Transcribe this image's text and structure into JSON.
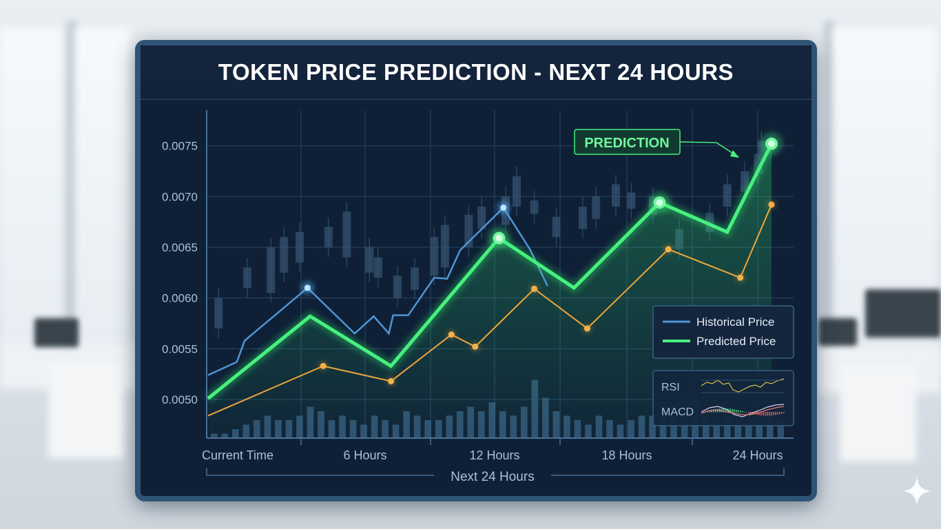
{
  "title": "TOKEN PRICE PREDICTION - NEXT 24 HOURS",
  "annotation": "PREDICTION",
  "legend": {
    "historical": "Historical Price",
    "predicted": "Predicted Price"
  },
  "indicators": {
    "rsi": "RSI",
    "macd": "MACD"
  },
  "xaxis_title": "Next 24 Hours",
  "colors": {
    "historical": "#4f95d6",
    "predicted": "#47f07e",
    "orange": "#f0a63a",
    "panel_bg": "#0f2036",
    "grid": "#2a4563",
    "axis_text": "#a8c0d8"
  },
  "chart_data": {
    "type": "line",
    "title": "TOKEN PRICE PREDICTION - NEXT 24 HOURS",
    "xlabel": "Next 24 Hours",
    "ylabel": "",
    "xlim": [
      0,
      24
    ],
    "ylim": [
      0.00462,
      0.00785
    ],
    "x_ticks": [
      {
        "x": 0,
        "label": "Current Time"
      },
      {
        "x": 6,
        "label": "6 Hours"
      },
      {
        "x": 12,
        "label": "12 Hours"
      },
      {
        "x": 18,
        "label": "18 Hours"
      },
      {
        "x": 24,
        "label": "24 Hours"
      }
    ],
    "y_ticks": [
      {
        "y": 0.005,
        "label": "0.0050"
      },
      {
        "y": 0.0055,
        "label": "0.0055"
      },
      {
        "y": 0.006,
        "label": "0.0060"
      },
      {
        "y": 0.0065,
        "label": "0.0065"
      },
      {
        "y": 0.007,
        "label": "0.0070"
      },
      {
        "y": 0.0075,
        "label": "0.0075"
      }
    ],
    "legend_position": "right",
    "grid": true,
    "series": [
      {
        "name": "Historical Price",
        "points": [
          [
            0,
            0.00524
          ],
          [
            1.1,
            0.00537
          ],
          [
            1.4,
            0.00558
          ],
          [
            3.8,
            0.0061
          ],
          [
            5.6,
            0.00565
          ],
          [
            6.4,
            0.00582
          ],
          [
            7.1,
            0.00565
          ],
          [
            7.3,
            0.00583
          ],
          [
            8.0,
            0.00583
          ],
          [
            9.2,
            0.0062
          ],
          [
            9.8,
            0.00619
          ],
          [
            10.4,
            0.00647
          ],
          [
            12.4,
            0.00689
          ],
          [
            13.6,
            0.00648
          ],
          [
            14.4,
            0.00612
          ]
        ],
        "markers": [
          [
            3.8,
            0.0061
          ],
          [
            12.4,
            0.00689
          ]
        ]
      },
      {
        "name": "Predicted Price",
        "points": [
          [
            0,
            0.00501
          ],
          [
            3.9,
            0.00582
          ],
          [
            7.2,
            0.00533
          ],
          [
            12.2,
            0.00659
          ],
          [
            15.6,
            0.0061
          ],
          [
            19.5,
            0.00694
          ],
          [
            22.6,
            0.00665
          ],
          [
            27,
            0.00752
          ]
        ],
        "markers": [
          [
            12.2,
            0.00659
          ],
          [
            19.5,
            0.00694
          ],
          [
            27,
            0.00752
          ]
        ]
      },
      {
        "points": [
          [
            0,
            0.00484
          ],
          [
            4.4,
            0.00533
          ],
          [
            7.2,
            0.00518
          ],
          [
            10.0,
            0.00564
          ],
          [
            11.1,
            0.00552
          ],
          [
            13.8,
            0.00609
          ],
          [
            16.2,
            0.0057
          ],
          [
            19.9,
            0.00648
          ],
          [
            23.2,
            0.0062
          ],
          [
            27,
            0.00692
          ]
        ],
        "markers": [
          [
            4.4,
            0.00533
          ],
          [
            7.2,
            0.00518
          ],
          [
            10.0,
            0.00564
          ],
          [
            11.1,
            0.00552
          ],
          [
            13.8,
            0.00609
          ],
          [
            16.2,
            0.0057
          ],
          [
            19.9,
            0.00648
          ],
          [
            23.2,
            0.0062
          ],
          [
            27,
            0.00692
          ]
        ]
      }
    ],
    "candles": [
      [
        0.4,
        0.0057,
        0.006
      ],
      [
        1.5,
        0.0061,
        0.0063
      ],
      [
        2.4,
        0.00605,
        0.0065
      ],
      [
        2.9,
        0.00625,
        0.0066
      ],
      [
        3.5,
        0.00635,
        0.00665
      ],
      [
        4.6,
        0.0065,
        0.0067
      ],
      [
        5.3,
        0.0064,
        0.00685
      ],
      [
        6.2,
        0.00625,
        0.0065
      ],
      [
        6.6,
        0.0062,
        0.0064
      ],
      [
        7.5,
        0.006,
        0.00622
      ],
      [
        8.3,
        0.00608,
        0.0063
      ],
      [
        9.2,
        0.00622,
        0.0066
      ],
      [
        9.7,
        0.0063,
        0.00672
      ],
      [
        10.8,
        0.0065,
        0.00682
      ],
      [
        11.4,
        0.00668,
        0.0069
      ],
      [
        12.5,
        0.00672,
        0.007
      ],
      [
        13.0,
        0.0069,
        0.0072
      ],
      [
        13.8,
        0.00683,
        0.00696
      ],
      [
        14.8,
        0.0066,
        0.0068
      ],
      [
        16.0,
        0.00668,
        0.0069
      ],
      [
        16.6,
        0.00678,
        0.007
      ],
      [
        17.5,
        0.0069,
        0.00712
      ],
      [
        18.2,
        0.00688,
        0.00704
      ],
      [
        19.2,
        0.00682,
        0.007
      ],
      [
        20.4,
        0.00648,
        0.00668
      ],
      [
        21.8,
        0.00665,
        0.00684
      ],
      [
        22.6,
        0.0069,
        0.00712
      ],
      [
        23.4,
        0.00705,
        0.00725
      ],
      [
        24.1,
        0.00722,
        0.00742
      ],
      [
        24.8,
        0.00735,
        0.00755
      ]
    ],
    "volume": [
      1,
      1,
      2,
      3,
      4,
      5,
      4,
      4,
      5,
      7,
      6,
      4,
      5,
      4,
      3,
      5,
      4,
      3,
      6,
      5,
      4,
      4,
      5,
      6,
      7,
      6,
      8,
      6,
      5,
      7,
      13,
      9,
      6,
      5,
      4,
      3,
      5,
      4,
      3,
      4,
      5,
      5,
      8,
      5,
      6,
      9,
      5,
      4,
      5,
      4,
      3,
      4,
      5,
      4
    ]
  }
}
